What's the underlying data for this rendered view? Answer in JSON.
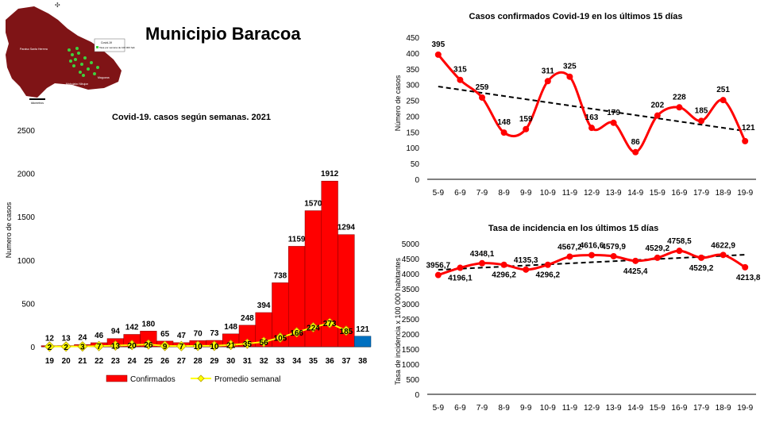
{
  "page": {
    "title": "Municipio Baracoa"
  },
  "map": {
    "legend_title": "Covid-19",
    "legend_entry": "Tasa por semana de 100 000 hab",
    "labels": [
      "Paraiso Santa Herrera",
      "Maguana",
      "Mabujabo Nibujon"
    ],
    "scale_label": "kilometros"
  },
  "colors": {
    "bar_red": "#ff0000",
    "bar_blue": "#0070c0",
    "avg_yellow": "#ffff00",
    "line_red": "#ff0000",
    "map_fill": "#7f1416",
    "trend": "#000000"
  },
  "chart_data": [
    {
      "id": "weekly",
      "type": "bar",
      "title": "Covid-19. casos según semanas. 2021",
      "ylabel": "Numero de casos",
      "ylim": [
        0,
        2500
      ],
      "yticks": [
        0,
        500,
        1000,
        1500,
        2000,
        2500
      ],
      "categories": [
        "19",
        "20",
        "21",
        "22",
        "23",
        "24",
        "25",
        "26",
        "27",
        "28",
        "29",
        "30",
        "31",
        "32",
        "33",
        "34",
        "35",
        "36",
        "37",
        "38"
      ],
      "series": [
        {
          "name": "Confirmados",
          "values": [
            12,
            13,
            24,
            46,
            94,
            142,
            180,
            65,
            47,
            70,
            73,
            148,
            248,
            394,
            738,
            1159,
            1570,
            1912,
            1294,
            121
          ],
          "highlight_last": true
        },
        {
          "name": "Promedio semanal",
          "values": [
            2,
            2,
            3,
            7,
            13,
            20,
            26,
            9,
            7,
            10,
            10,
            21,
            35,
            56,
            105,
            166,
            224,
            273,
            185,
            null
          ]
        }
      ]
    },
    {
      "id": "daily",
      "type": "line",
      "title": "Casos confirmados  Covid-19 en los últimos 15 días",
      "ylabel": "Número de casos",
      "ylim": [
        0,
        450
      ],
      "yticks": [
        0,
        50,
        100,
        150,
        200,
        250,
        300,
        350,
        400,
        450
      ],
      "categories": [
        "5-9",
        "6-9",
        "7-9",
        "8-9",
        "9-9",
        "10-9",
        "11-9",
        "12-9",
        "13-9",
        "14-9",
        "15-9",
        "16-9",
        "17-9",
        "18-9",
        "19-9"
      ],
      "values": [
        395,
        315,
        259,
        148,
        159,
        311,
        325,
        163,
        179,
        86,
        202,
        228,
        185,
        251,
        121
      ],
      "labels": [
        "395",
        "315",
        "259",
        "148",
        "159",
        "311",
        "325",
        "163",
        "179",
        "86",
        "202",
        "228",
        "185",
        "251",
        "121"
      ],
      "trend": [
        294,
        153
      ]
    },
    {
      "id": "incidence",
      "type": "line",
      "title": "Tasa de incidencia  en los últimos 15 días",
      "ylabel": "Tasa de incidencia x 100 000 habitantes",
      "ylim": [
        0,
        5000
      ],
      "yticks": [
        0,
        500,
        1000,
        1500,
        2000,
        2500,
        3000,
        3500,
        4000,
        4500,
        5000
      ],
      "categories": [
        "5-9",
        "6-9",
        "7-9",
        "8-9",
        "9-9",
        "10-9",
        "11-9",
        "12-9",
        "13-9",
        "14-9",
        "15-9",
        "16-9",
        "17-9",
        "18-9",
        "19-9"
      ],
      "values": [
        3956.7,
        4196.1,
        4348.1,
        4296.2,
        4135.3,
        4296.2,
        4567.2,
        4616.6,
        4579.9,
        4425.4,
        4529.2,
        4758.5,
        4529.2,
        4622.9,
        4213.8
      ],
      "labels": [
        "3956,7",
        "4196,1",
        "4348,1",
        "4296,2",
        "4135,3",
        "4296,2",
        "4567,2",
        "4616,6",
        "4579,9",
        "4425,4",
        "4529,2",
        "4758,5",
        "4529,2",
        "4622,9",
        "4213,8"
      ],
      "trend": [
        4130,
        4630
      ]
    }
  ]
}
